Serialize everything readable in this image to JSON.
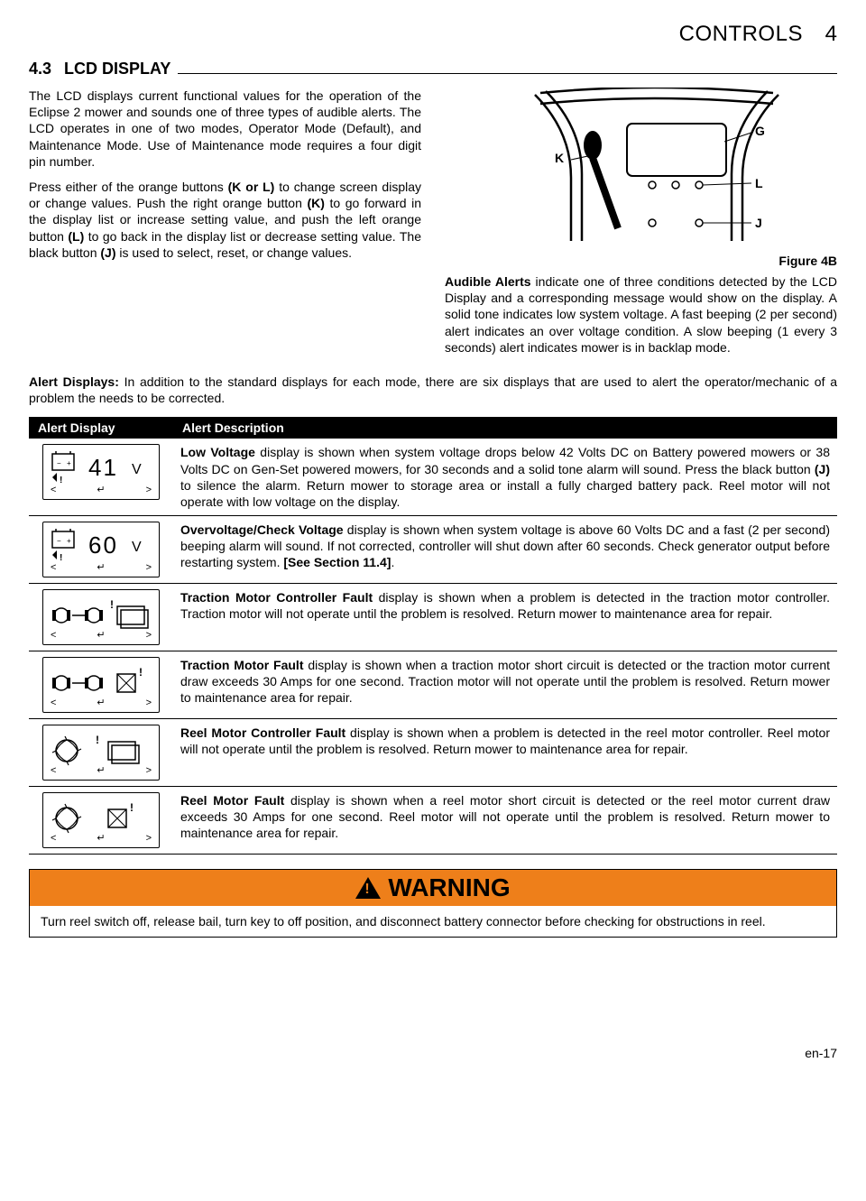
{
  "header": {
    "chapter": "CONTROLS",
    "number": "4"
  },
  "section": {
    "num": "4.3",
    "title": "LCD DISPLAY"
  },
  "para1": "The LCD displays current functional values for the operation of the Eclipse 2 mower and sounds one of three types of audible alerts. The LCD operates in one of two modes, Operator Mode (Default), and Maintenance Mode. Use of Maintenance mode requires a four digit pin number.",
  "para2_pre": "Press either of the orange buttons ",
  "para2_b1": "(K or L)",
  "para2_mid1": " to change screen display or change values. Push the right orange button ",
  "para2_b2": "(K)",
  "para2_mid2": " to go forward in the display list or increase setting value, and push the left orange button ",
  "para2_b3": "(L)",
  "para2_mid3": " to go back in the display list or decrease setting value. The black button ",
  "para2_b4": "(J)",
  "para2_end": " is used to select, reset, or change values.",
  "figure_caption": "Figure 4B",
  "fig_labels": {
    "K": "K",
    "G": "G",
    "L": "L",
    "J": "J"
  },
  "audible_b": "Audible Alerts",
  "audible_rest": " indicate one of three conditions detected by the LCD Display and a corresponding message would show on the display. A solid tone indicates low system voltage. A fast beeping (2 per second) alert indicates an over voltage condition. A slow beeping (1 every 3 seconds) alert indicates mower is in backlap mode.",
  "alert_para_b": "Alert Displays:",
  "alert_para_rest": " In addition to the standard displays for each mode, there are six displays that are used to alert the operator/mechanic of a problem the needs to be corrected.",
  "table": {
    "headers": [
      "Alert Display",
      "Alert Description"
    ],
    "rows": [
      {
        "icon": {
          "type": "voltage",
          "value": "41"
        },
        "bold": "Low Voltage",
        "plain": " display is shown when system voltage drops below 42 Volts DC on Battery powered mowers or 38 Volts DC on Gen-Set powered mowers, for 30 seconds and a solid tone alarm will sound. Press the black button ",
        "bold2": "(J)",
        "plain2": " to silence the alarm. Return mower to storage area or install a fully charged battery pack. Reel motor will not operate with low voltage on the display."
      },
      {
        "icon": {
          "type": "voltage",
          "value": "60"
        },
        "bold": "Overvoltage/Check Voltage",
        "plain": " display is shown when system voltage is above 60 Volts DC and a fast (2 per second) beeping alarm will sound. If not corrected, controller will shut down after 60 seconds. Check generator output before restarting system. ",
        "bold2": "[See Section 11.4]",
        "plain2": "."
      },
      {
        "icon": {
          "type": "traction-ctrl"
        },
        "bold": "Traction Motor Controller Fault",
        "plain": " display is shown when a problem is detected in the traction motor controller. Traction motor will not operate until the problem is resolved. Return mower to maintenance area for repair.",
        "bold2": "",
        "plain2": ""
      },
      {
        "icon": {
          "type": "traction-motor"
        },
        "bold": "Traction Motor Fault",
        "plain": " display is shown when a traction motor short circuit is detected or the traction motor current draw exceeds 30 Amps for one second. Traction motor will not operate until the problem is resolved. Return mower to maintenance area for repair.",
        "bold2": "",
        "plain2": ""
      },
      {
        "icon": {
          "type": "reel-ctrl"
        },
        "bold": "Reel Motor Controller Fault",
        "plain": " display is shown when a problem is detected in the reel motor controller. Reel motor will not operate until the problem is resolved. Return mower to maintenance area for repair.",
        "bold2": "",
        "plain2": ""
      },
      {
        "icon": {
          "type": "reel-motor"
        },
        "bold": "Reel Motor Fault",
        "plain": " display is shown when a reel motor short circuit is detected or the reel motor current draw exceeds 30 Amps for one second. Reel motor will not operate until the problem is resolved. Return mower to maintenance area for repair.",
        "bold2": "",
        "plain2": ""
      }
    ]
  },
  "warning": {
    "title": "WARNING",
    "body": "Turn reel switch off, release bail, turn key to off position, and disconnect battery connector before checking for obstructions in reel."
  },
  "page_num": "en-17",
  "colors": {
    "warning_bg": "#ee7f1a"
  }
}
